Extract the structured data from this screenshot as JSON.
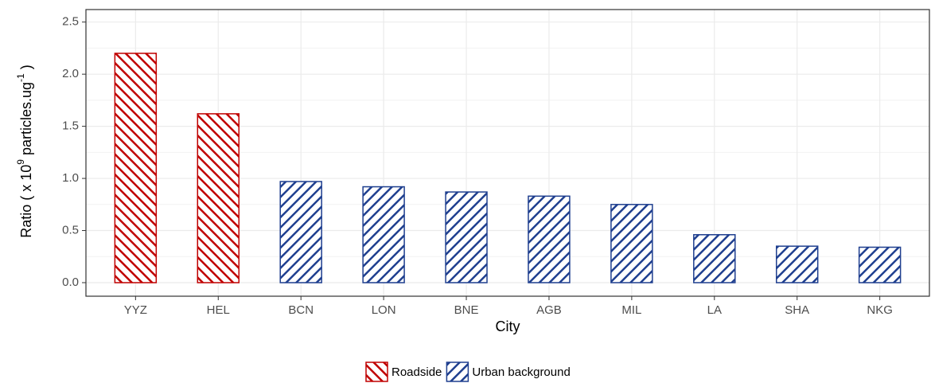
{
  "chart_data": {
    "type": "bar",
    "x_label": "City",
    "y_label": [
      "Ratio ( x 10",
      "9",
      " particles.ug",
      "-1",
      " )"
    ],
    "categories": [
      "YYZ",
      "HEL",
      "BCN",
      "LON",
      "BNE",
      "AGB",
      "MIL",
      "LA",
      "SHA",
      "NKG"
    ],
    "series": [
      {
        "name": "Roadside",
        "color": "#c00000",
        "hatch": "backslash",
        "values": [
          2.2,
          1.62,
          null,
          null,
          null,
          null,
          null,
          null,
          null,
          null
        ]
      },
      {
        "name": "Urban background",
        "color": "#1f3f8f",
        "hatch": "slash",
        "values": [
          null,
          null,
          0.97,
          0.92,
          0.87,
          0.83,
          0.75,
          0.46,
          0.35,
          0.34
        ]
      }
    ],
    "ylim": [
      -0.13,
      2.62
    ],
    "yticks": [
      {
        "value": 0,
        "label": "0.0"
      },
      0.5,
      {
        "value": 1,
        "label": "1.0"
      },
      1.5,
      {
        "value": 2,
        "label": "2.0"
      },
      2.5
    ],
    "grid": true,
    "legend": "bottom"
  }
}
